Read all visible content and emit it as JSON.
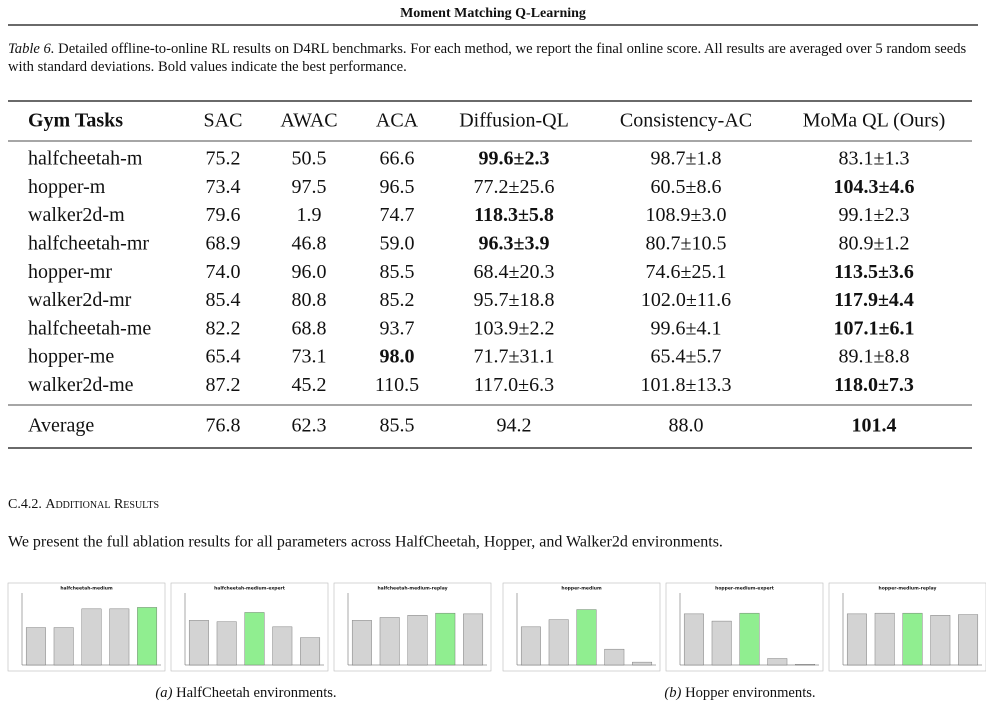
{
  "header": "Moment Matching Q-Learning",
  "caption": {
    "label": "Table 6.",
    "text": "Detailed offline-to-online RL results on D4RL benchmarks. For each method, we report the final online score. All results are averaged over 5 random seeds with standard deviations. Bold values indicate the best performance."
  },
  "table": {
    "columns": [
      "Gym Tasks",
      "SAC",
      "AWAC",
      "ACA",
      "Diffusion-QL",
      "Consistency-AC",
      "MoMa QL (Ours)"
    ],
    "rows": [
      [
        "halfcheetah-m",
        "75.2",
        "50.5",
        "66.6",
        "99.6±2.3",
        "98.7±1.8",
        "83.1±1.3"
      ],
      [
        "hopper-m",
        "73.4",
        "97.5",
        "96.5",
        "77.2±25.6",
        "60.5±8.6",
        "104.3±4.6"
      ],
      [
        "walker2d-m",
        "79.6",
        "1.9",
        "74.7",
        "118.3±5.8",
        "108.9±3.0",
        "99.1±2.3"
      ],
      [
        "halfcheetah-mr",
        "68.9",
        "46.8",
        "59.0",
        "96.3±3.9",
        "80.7±10.5",
        "80.9±1.2"
      ],
      [
        "hopper-mr",
        "74.0",
        "96.0",
        "85.5",
        "68.4±20.3",
        "74.6±25.1",
        "113.5±3.6"
      ],
      [
        "walker2d-mr",
        "85.4",
        "80.8",
        "85.2",
        "95.7±18.8",
        "102.0±11.6",
        "117.9±4.4"
      ],
      [
        "halfcheetah-me",
        "82.2",
        "68.8",
        "93.7",
        "103.9±2.2",
        "99.6±4.1",
        "107.1±6.1"
      ],
      [
        "hopper-me",
        "65.4",
        "73.1",
        "98.0",
        "71.7±31.1",
        "65.4±5.7",
        "89.1±8.8"
      ],
      [
        "walker2d-me",
        "87.2",
        "45.2",
        "110.5",
        "117.0±6.3",
        "101.8±13.3",
        "118.0±7.3"
      ]
    ],
    "average": [
      "Average",
      "76.8",
      "62.3",
      "85.5",
      "94.2",
      "88.0",
      "101.4"
    ],
    "bold": [
      [
        0,
        4
      ],
      [
        1,
        6
      ],
      [
        2,
        4
      ],
      [
        3,
        4
      ],
      [
        4,
        6
      ],
      [
        5,
        6
      ],
      [
        6,
        6
      ],
      [
        7,
        3
      ],
      [
        8,
        6
      ]
    ],
    "average_bold": [
      6
    ]
  },
  "section": {
    "number": "C.4.2.",
    "title": "Additional Results"
  },
  "paragraph": "We present the full ablation results for all parameters across HalfCheetah, Hopper, and Walker2d environments.",
  "figures": [
    {
      "label": "(a)",
      "caption": "HalfCheetah environments.",
      "charts": [
        {
          "type": "bar",
          "title": "halfcheetah-medium",
          "values": [
            0.52,
            0.52,
            0.78,
            0.78,
            0.8
          ],
          "highlight": 4
        },
        {
          "type": "bar",
          "title": "halfcheetah-medium-expert",
          "values": [
            0.62,
            0.6,
            0.73,
            0.53,
            0.38
          ],
          "highlight": 2
        },
        {
          "type": "bar",
          "title": "halfcheetah-medium-replay",
          "values": [
            0.62,
            0.66,
            0.69,
            0.72,
            0.71
          ],
          "highlight": 3
        }
      ]
    },
    {
      "label": "(b)",
      "caption": "Hopper environments.",
      "charts": [
        {
          "type": "bar",
          "title": "hopper-medium",
          "values": [
            0.53,
            0.63,
            0.77,
            0.22,
            0.04
          ],
          "highlight": 2
        },
        {
          "type": "bar",
          "title": "hopper-medium-expert",
          "values": [
            0.71,
            0.61,
            0.72,
            0.09,
            0.01
          ],
          "highlight": 2
        },
        {
          "type": "bar",
          "title": "hopper-medium-replay",
          "values": [
            0.71,
            0.72,
            0.72,
            0.69,
            0.7
          ],
          "highlight": 2
        }
      ]
    }
  ]
}
